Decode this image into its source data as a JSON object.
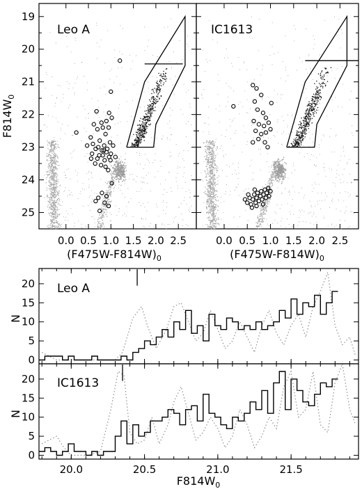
{
  "figure": {
    "cmd_ylabel_base": "F814W",
    "cmd_ylabel_sub": "0",
    "cmd_xlabel_base": "(F475W-F814W)",
    "cmd_xlabel_sub": "0",
    "hist_ylabel": "N",
    "hist_xlabel_base": "F814W",
    "hist_xlabel_sub": "0",
    "colors": {
      "field_stars": "#a6a6a6",
      "rgb_stars": "#111111",
      "histogram": "#000000",
      "luminosity_function": "#8c8c8c"
    }
  },
  "chart_data": [
    {
      "type": "scatter",
      "panel": "cmd-left",
      "title": "Leo A",
      "xlabel": "(F475W-F814W)0",
      "ylabel": "F814W0",
      "xlim": [
        -0.6,
        2.9
      ],
      "ylim": [
        25.5,
        18.6
      ],
      "xticks": [
        0.0,
        0.5,
        1.0,
        1.5,
        2.0,
        2.5
      ],
      "yticks": [
        19,
        20,
        21,
        22,
        23,
        24,
        25
      ],
      "grid": false,
      "selection_box": [
        [
          1.35,
          23.0
        ],
        [
          1.75,
          21.0
        ],
        [
          2.65,
          19.0
        ],
        [
          2.65,
          20.5
        ],
        [
          2.0,
          22.3
        ],
        [
          1.95,
          23.0
        ],
        [
          1.35,
          23.0
        ]
      ],
      "trgb": {
        "magnitude": 20.45,
        "color_range": [
          1.75,
          2.6
        ]
      },
      "variable_stars": [
        [
          0.23,
          22.55
        ],
        [
          0.47,
          22.95
        ],
        [
          0.55,
          22.7
        ],
        [
          0.62,
          22.3
        ],
        [
          0.68,
          21.9
        ],
        [
          0.7,
          23.35
        ],
        [
          0.72,
          23.0
        ],
        [
          0.58,
          23.2
        ],
        [
          0.75,
          22.8
        ],
        [
          0.8,
          23.1
        ],
        [
          0.82,
          23.25
        ],
        [
          0.85,
          22.95
        ],
        [
          0.86,
          23.4
        ],
        [
          0.88,
          22.6
        ],
        [
          0.9,
          23.15
        ],
        [
          0.92,
          23.05
        ],
        [
          0.95,
          22.4
        ],
        [
          0.96,
          23.3
        ],
        [
          0.98,
          22.85
        ],
        [
          1.0,
          23.2
        ],
        [
          1.02,
          22.1
        ],
        [
          0.65,
          23.5
        ],
        [
          0.78,
          23.55
        ],
        [
          0.88,
          23.6
        ],
        [
          0.7,
          22.45
        ],
        [
          0.6,
          22.9
        ],
        [
          0.74,
          23.25
        ],
        [
          0.84,
          23.1
        ],
        [
          1.05,
          22.95
        ],
        [
          0.94,
          23.7
        ],
        [
          0.66,
          23.05
        ],
        [
          0.79,
          22.25
        ],
        [
          0.9,
          22.2
        ],
        [
          0.99,
          23.4
        ],
        [
          0.56,
          23.35
        ],
        [
          1.1,
          23.3
        ],
        [
          0.72,
          24.55
        ],
        [
          0.8,
          24.4
        ],
        [
          0.9,
          24.5
        ],
        [
          0.66,
          24.65
        ],
        [
          0.86,
          24.7
        ],
        [
          1.02,
          24.1
        ],
        [
          0.95,
          24.8
        ],
        [
          0.75,
          24.95
        ],
        [
          1.0,
          21.3
        ],
        [
          1.2,
          20.35
        ],
        [
          0.82,
          22.4
        ],
        [
          0.96,
          21.95
        ]
      ]
    },
    {
      "type": "scatter",
      "panel": "cmd-right",
      "title": "IC1613",
      "xlabel": "(F475W-F814W)0",
      "ylabel": "F814W0",
      "xlim": [
        -0.6,
        2.9
      ],
      "ylim": [
        25.5,
        18.6
      ],
      "xticks": [
        0.0,
        0.5,
        1.0,
        1.5,
        2.0,
        2.5
      ],
      "yticks": [
        19,
        20,
        21,
        22,
        23,
        24,
        25
      ],
      "grid": false,
      "selection_box": [
        [
          1.35,
          23.0
        ],
        [
          1.75,
          21.0
        ],
        [
          2.65,
          19.0
        ],
        [
          2.65,
          20.5
        ],
        [
          2.0,
          22.3
        ],
        [
          1.95,
          23.0
        ],
        [
          1.35,
          23.0
        ]
      ],
      "trgb": {
        "magnitude": 20.35,
        "color_range": [
          1.75,
          2.9
        ]
      },
      "variable_stars": [
        [
          0.2,
          21.75
        ],
        [
          0.62,
          21.1
        ],
        [
          0.7,
          21.2
        ],
        [
          0.8,
          21.4
        ],
        [
          0.66,
          21.6
        ],
        [
          0.72,
          21.85
        ],
        [
          0.84,
          21.95
        ],
        [
          0.9,
          22.1
        ],
        [
          0.64,
          22.2
        ],
        [
          0.75,
          22.3
        ],
        [
          0.86,
          22.35
        ],
        [
          0.96,
          22.25
        ],
        [
          0.68,
          22.5
        ],
        [
          0.8,
          22.6
        ],
        [
          0.9,
          22.55
        ],
        [
          1.0,
          22.45
        ],
        [
          0.74,
          22.75
        ],
        [
          0.88,
          22.85
        ],
        [
          0.94,
          23.0
        ],
        [
          0.62,
          22.85
        ],
        [
          1.02,
          21.65
        ],
        [
          0.45,
          24.6
        ],
        [
          0.5,
          24.7
        ],
        [
          0.55,
          24.55
        ],
        [
          0.58,
          24.75
        ],
        [
          0.62,
          24.6
        ],
        [
          0.65,
          24.45
        ],
        [
          0.68,
          24.7
        ],
        [
          0.7,
          24.55
        ],
        [
          0.72,
          24.4
        ],
        [
          0.75,
          24.65
        ],
        [
          0.78,
          24.5
        ],
        [
          0.8,
          24.35
        ],
        [
          0.82,
          24.6
        ],
        [
          0.85,
          24.45
        ],
        [
          0.88,
          24.3
        ],
        [
          0.9,
          24.55
        ],
        [
          0.92,
          24.4
        ],
        [
          0.95,
          24.25
        ],
        [
          1.0,
          24.35
        ],
        [
          0.6,
          24.85
        ],
        [
          0.7,
          24.8
        ],
        [
          0.52,
          24.45
        ],
        [
          0.84,
          24.75
        ],
        [
          0.97,
          24.5
        ],
        [
          0.66,
          24.3
        ]
      ]
    },
    {
      "type": "line",
      "panel": "hist-top",
      "title": "Leo A",
      "xlabel": "F814W0",
      "ylabel": "N",
      "xlim": [
        19.78,
        21.96
      ],
      "ylim": [
        -1,
        24
      ],
      "xticks": [
        20.0,
        20.5,
        21.0,
        21.5
      ],
      "yticks": [
        0,
        5,
        10,
        15,
        20
      ],
      "trgb": 20.45,
      "series": [
        {
          "style": "histogram",
          "bin_width": 0.04,
          "x_start": 19.78,
          "values": [
            0,
            1,
            1,
            1,
            0,
            1,
            0,
            0,
            0,
            1,
            0,
            0,
            0,
            0,
            1,
            0,
            2,
            3,
            5,
            4,
            6,
            8,
            6,
            10,
            8,
            13,
            7,
            9,
            5,
            12,
            9,
            8,
            11,
            10,
            8,
            9,
            8,
            10,
            8,
            9,
            10,
            13,
            11,
            16,
            12,
            15,
            14,
            17,
            12,
            15,
            18
          ]
        },
        {
          "style": "luminosity-function",
          "dotted": true,
          "x": [
            19.8,
            19.9,
            20.0,
            20.1,
            20.2,
            20.3,
            20.35,
            20.42,
            20.48,
            20.52,
            20.58,
            20.65,
            20.7,
            20.75,
            20.8,
            20.85,
            20.9,
            20.95,
            21.0,
            21.05,
            21.1,
            21.15,
            21.2,
            21.25,
            21.3,
            21.35,
            21.4,
            21.45,
            21.5,
            21.55,
            21.6,
            21.65,
            21.7,
            21.75,
            21.8,
            21.85,
            21.9,
            21.94
          ],
          "y": [
            2,
            0,
            0,
            0,
            0,
            0,
            2,
            11,
            14,
            9,
            3,
            8,
            14,
            15,
            10,
            5,
            7,
            13,
            8,
            3,
            5,
            10,
            6,
            2,
            9,
            13,
            7,
            4,
            9,
            12,
            6,
            14,
            18,
            23,
            9,
            4,
            6,
            1
          ]
        }
      ]
    },
    {
      "type": "line",
      "panel": "hist-bottom",
      "title": "IC1613",
      "xlabel": "F814W0",
      "ylabel": "N",
      "xlim": [
        19.78,
        21.96
      ],
      "ylim": [
        -1,
        24
      ],
      "xticks": [
        20.0,
        20.5,
        21.0,
        21.5
      ],
      "yticks": [
        0,
        5,
        10,
        15,
        20
      ],
      "trgb": 20.35,
      "series": [
        {
          "style": "histogram",
          "bin_width": 0.04,
          "x_start": 19.78,
          "values": [
            1,
            2,
            1,
            0,
            1,
            3,
            1,
            1,
            0,
            1,
            0,
            1,
            1,
            5,
            9,
            3,
            8,
            5,
            6,
            9,
            9,
            10,
            12,
            11,
            8,
            12,
            13,
            9,
            16,
            11,
            10,
            8,
            7,
            10,
            9,
            11,
            14,
            12,
            17,
            11,
            19,
            22,
            12,
            20,
            17,
            14,
            13,
            16,
            19,
            18,
            20
          ]
        },
        {
          "style": "luminosity-function",
          "dotted": true,
          "x": [
            19.8,
            19.9,
            19.95,
            20.0,
            20.05,
            20.12,
            20.2,
            20.27,
            20.32,
            20.36,
            20.4,
            20.45,
            20.5,
            20.55,
            20.6,
            20.66,
            20.7,
            20.75,
            20.8,
            20.85,
            20.9,
            20.95,
            21.0,
            21.05,
            21.1,
            21.15,
            21.2,
            21.25,
            21.3,
            21.35,
            21.4,
            21.45,
            21.5,
            21.55,
            21.6,
            21.65,
            21.7,
            21.75,
            21.8,
            21.85,
            21.9,
            21.94
          ],
          "y": [
            3,
            5,
            2,
            0,
            0,
            0,
            1,
            12,
            22,
            21,
            6,
            3,
            4,
            10,
            3,
            8,
            14,
            18,
            11,
            4,
            6,
            10,
            7,
            2,
            5,
            12,
            8,
            2,
            5,
            10,
            7,
            18,
            22,
            10,
            12,
            22,
            8,
            6,
            19,
            24,
            12,
            8
          ]
        }
      ]
    }
  ]
}
